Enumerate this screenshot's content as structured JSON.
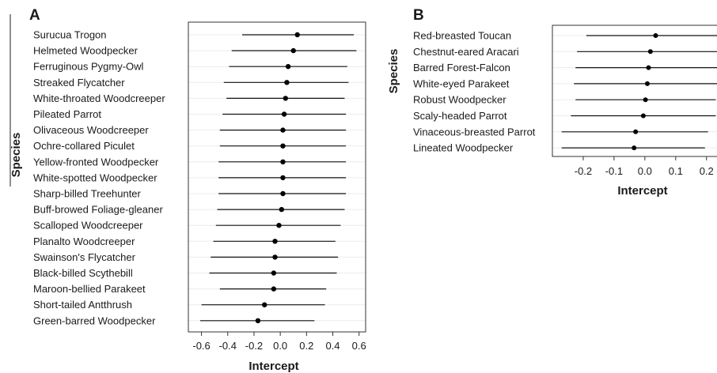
{
  "chart_data": [
    {
      "type": "scatter",
      "subtype": "forest-plot",
      "panel_label": "A",
      "title": "",
      "xlabel": "Intercept",
      "ylabel": "Species",
      "xlim": [
        -0.7,
        0.65
      ],
      "xticks": [
        -0.6,
        -0.4,
        -0.2,
        0.0,
        0.2,
        0.4,
        0.6
      ],
      "xtick_labels": [
        "-0.6",
        "-0.4",
        "-0.2",
        "0.0",
        "0.2",
        "0.4",
        "0.6"
      ],
      "grid": true,
      "series": [
        {
          "categories": [
            "Surucua Trogon",
            "Helmeted Woodpecker",
            "Ferruginous Pygmy-Owl",
            "Streaked Flycatcher",
            "White-throated Woodcreeper",
            "Pileated Parrot",
            "Olivaceous Woodcreeper",
            "Ochre-collared Piculet",
            "Yellow-fronted Woodpecker",
            "White-spotted Woodpecker",
            "Sharp-billed Treehunter",
            "Buff-browed Foliage-gleaner",
            "Scalloped Woodcreeper",
            "Planalto Woodcreeper",
            "Swainson's Flycatcher",
            "Black-billed Scythebill",
            "Maroon-bellied Parakeet",
            "Short-tailed Antthrush",
            "Green-barred Woodpecker"
          ],
          "estimate": [
            0.13,
            0.1,
            0.06,
            0.05,
            0.04,
            0.03,
            0.02,
            0.02,
            0.02,
            0.02,
            0.02,
            0.01,
            -0.01,
            -0.04,
            -0.04,
            -0.05,
            -0.05,
            -0.12,
            -0.17
          ],
          "lower": [
            -0.29,
            -0.37,
            -0.39,
            -0.43,
            -0.41,
            -0.44,
            -0.46,
            -0.46,
            -0.47,
            -0.47,
            -0.47,
            -0.48,
            -0.49,
            -0.51,
            -0.53,
            -0.54,
            -0.46,
            -0.6,
            -0.61
          ],
          "upper": [
            0.56,
            0.58,
            0.51,
            0.52,
            0.49,
            0.5,
            0.5,
            0.5,
            0.5,
            0.5,
            0.5,
            0.49,
            0.46,
            0.42,
            0.44,
            0.43,
            0.35,
            0.34,
            0.26
          ]
        }
      ]
    },
    {
      "type": "scatter",
      "subtype": "forest-plot",
      "panel_label": "B",
      "title": "",
      "xlabel": "Intercept",
      "ylabel": "Species",
      "xlim": [
        -0.3,
        0.27
      ],
      "xticks": [
        -0.2,
        -0.1,
        0.0,
        0.1,
        0.2
      ],
      "xtick_labels": [
        "-0.2",
        "-0.1",
        "0.0",
        "0.1",
        "0.2"
      ],
      "grid": true,
      "series": [
        {
          "categories": [
            "Red-breasted Toucan",
            "Chestnut-eared Aracari",
            "Barred Forest-Falcon",
            "White-eyed Parakeet",
            "Robust Woodpecker",
            "Scaly-headed Parrot",
            "Vinaceous-breasted Parrot",
            "Lineated Woodpecker"
          ],
          "estimate": [
            0.035,
            0.018,
            0.012,
            0.008,
            0.002,
            -0.005,
            -0.03,
            -0.035
          ],
          "lower": [
            -0.19,
            -0.22,
            -0.225,
            -0.23,
            -0.225,
            -0.24,
            -0.27,
            -0.27
          ],
          "upper": [
            0.27,
            0.25,
            0.25,
            0.245,
            0.23,
            0.23,
            0.205,
            0.195
          ]
        }
      ]
    }
  ]
}
